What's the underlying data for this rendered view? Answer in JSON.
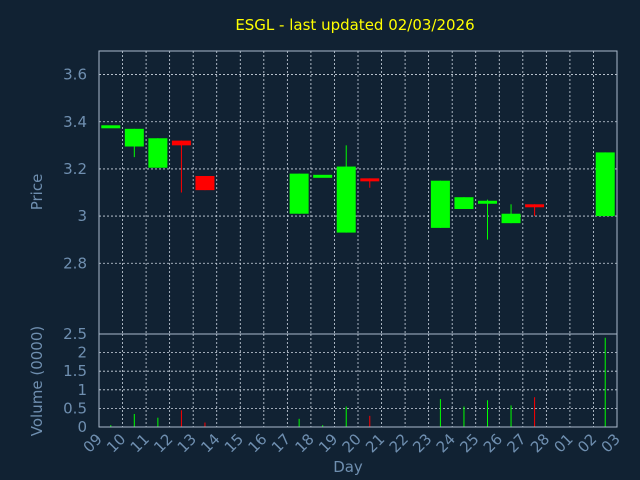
{
  "colors": {
    "background": "#112233",
    "title": "#ffff00",
    "axis_text": "#6f8fb0",
    "frame": "#aabbcc",
    "grid": "#cfd8e3",
    "up": "#00ff00",
    "down": "#ff0000"
  },
  "chart_data": {
    "type": "candlestick",
    "title": "ESGL - last updated 02/03/2026",
    "price_panel": {
      "ylabel": "Price",
      "ylim": [
        2.5,
        3.7
      ],
      "yticks": [
        2.8,
        3,
        3.2,
        3.4,
        3.6
      ],
      "ytick_labels": [
        "2.8",
        "3",
        "3.2",
        "3.4",
        "3.6"
      ],
      "grid": true
    },
    "volume_panel": {
      "ylabel": "Volume (0000)",
      "ylim": [
        0,
        2.5
      ],
      "yticks": [
        0,
        0.5,
        1,
        1.5,
        2,
        2.5
      ],
      "ytick_labels": [
        "0",
        "0.5",
        "1",
        "1.5",
        "2",
        "2.5"
      ],
      "grid": true
    },
    "xlabel": "Day",
    "x_tick_labels": [
      "09",
      "10",
      "11",
      "12",
      "13",
      "14",
      "15",
      "16",
      "17",
      "18",
      "19",
      "20",
      "21",
      "22",
      "23",
      "24",
      "25",
      "26",
      "27",
      "28",
      "01",
      "02",
      "03"
    ],
    "candles": [
      {
        "day": "09",
        "open": 3.385,
        "high": 3.385,
        "low": 3.385,
        "close": 3.385,
        "volume": 0.05,
        "dir": "up"
      },
      {
        "day": "10",
        "open": 3.295,
        "high": 3.37,
        "low": 3.25,
        "close": 3.37,
        "volume": 0.35,
        "dir": "up"
      },
      {
        "day": "11",
        "open": 3.205,
        "high": 3.33,
        "low": 3.205,
        "close": 3.33,
        "volume": 0.25,
        "dir": "up"
      },
      {
        "day": "12",
        "open": 3.32,
        "high": 3.32,
        "low": 3.1,
        "close": 3.3,
        "volume": 0.45,
        "dir": "down"
      },
      {
        "day": "13",
        "open": 3.17,
        "high": 3.17,
        "low": 3.11,
        "close": 3.11,
        "volume": 0.12,
        "dir": "down"
      },
      {
        "day": "17",
        "open": 3.01,
        "high": 3.18,
        "low": 3.01,
        "close": 3.18,
        "volume": 0.22,
        "dir": "up"
      },
      {
        "day": "18",
        "open": 3.175,
        "high": 3.175,
        "low": 3.175,
        "close": 3.175,
        "volume": 0.05,
        "dir": "up"
      },
      {
        "day": "19",
        "open": 2.93,
        "high": 3.3,
        "low": 2.93,
        "close": 3.21,
        "volume": 0.55,
        "dir": "up"
      },
      {
        "day": "20",
        "open": 3.16,
        "high": 3.16,
        "low": 3.12,
        "close": 3.15,
        "volume": 0.3,
        "dir": "down"
      },
      {
        "day": "23",
        "open": 2.95,
        "high": 3.15,
        "low": 2.95,
        "close": 3.15,
        "volume": 0.75,
        "dir": "up"
      },
      {
        "day": "24",
        "open": 3.03,
        "high": 3.08,
        "low": 3.03,
        "close": 3.08,
        "volume": 0.55,
        "dir": "up"
      },
      {
        "day": "25",
        "open": 3.06,
        "high": 3.07,
        "low": 2.9,
        "close": 3.065,
        "volume": 0.72,
        "dir": "up"
      },
      {
        "day": "26",
        "open": 2.97,
        "high": 3.05,
        "low": 2.97,
        "close": 3.01,
        "volume": 0.58,
        "dir": "up"
      },
      {
        "day": "27",
        "open": 3.05,
        "high": 3.05,
        "low": 3.0,
        "close": 3.04,
        "volume": 0.8,
        "dir": "down"
      },
      {
        "day": "02",
        "open": 3.0,
        "high": 3.27,
        "low": 3.0,
        "close": 3.27,
        "volume": 2.4,
        "dir": "up"
      }
    ]
  }
}
